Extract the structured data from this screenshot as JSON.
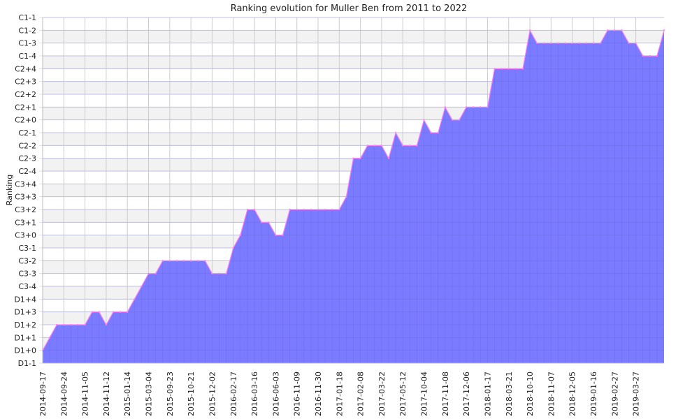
{
  "chart_data": {
    "type": "area",
    "title": "Ranking evolution for Muller Ben from 2011 to 2022",
    "xlabel": "",
    "ylabel": "Ranking",
    "y_categories": [
      "D1-1",
      "D1+0",
      "D1+1",
      "D1+2",
      "D1+3",
      "D1+4",
      "C3-4",
      "C3-3",
      "C3-2",
      "C3-1",
      "C3+0",
      "C3+1",
      "C3+2",
      "C3+3",
      "C3+4",
      "C2-4",
      "C2-3",
      "C2-2",
      "C2-1",
      "C2+0",
      "C2+1",
      "C2+2",
      "C2+3",
      "C2+4",
      "C1-4",
      "C1-3",
      "C1-2",
      "C1-1"
    ],
    "x_tick_labels": [
      "2014-09-17",
      "2014-09-24",
      "2014-11-05",
      "2014-11-12",
      "2015-01-14",
      "2015-03-04",
      "2015-09-23",
      "2015-10-21",
      "2015-12-02",
      "2016-02-17",
      "2016-03-16",
      "2016-06-03",
      "2016-11-09",
      "2016-11-30",
      "2017-01-18",
      "2017-02-08",
      "2017-03-22",
      "2017-05-12",
      "2017-10-04",
      "2017-11-08",
      "2017-12-06",
      "2018-01-17",
      "2018-03-21",
      "2018-10-10",
      "2018-11-07",
      "2018-12-05",
      "2019-01-16",
      "2019-02-27",
      "2019-03-27"
    ],
    "series": [
      {
        "values": [
          "D1+0",
          "D1+1",
          "D1+2",
          "D1+2",
          "D1+2",
          "D1+2",
          "D1+2",
          "D1+3",
          "D1+3",
          "D1+2",
          "D1+3",
          "D1+3",
          "D1+3",
          "D1+4",
          "C3-4",
          "C3-3",
          "C3-3",
          "C3-2",
          "C3-2",
          "C3-2",
          "C3-2",
          "C3-2",
          "C3-2",
          "C3-2",
          "C3-3",
          "C3-3",
          "C3-3",
          "C3-1",
          "C3+0",
          "C3+2",
          "C3+2",
          "C3+1",
          "C3+1",
          "C3+0",
          "C3+0",
          "C3+2",
          "C3+2",
          "C3+2",
          "C3+2",
          "C3+2",
          "C3+2",
          "C3+2",
          "C3+2",
          "C3+3",
          "C2-3",
          "C2-3",
          "C2-2",
          "C2-2",
          "C2-2",
          "C2-3",
          "C2-1",
          "C2-2",
          "C2-2",
          "C2-2",
          "C2+0",
          "C2-1",
          "C2-1",
          "C2+1",
          "C2+0",
          "C2+0",
          "C2+1",
          "C2+1",
          "C2+1",
          "C2+1",
          "C2+4",
          "C2+4",
          "C2+4",
          "C2+4",
          "C2+4",
          "C1-2",
          "C1-3",
          "C1-3",
          "C1-3",
          "C1-3",
          "C1-3",
          "C1-3",
          "C1-3",
          "C1-3",
          "C1-3",
          "C1-3",
          "C1-2",
          "C1-2",
          "C1-2",
          "C1-3",
          "C1-3",
          "C1-4",
          "C1-4",
          "C1-4",
          "C1-2"
        ]
      }
    ],
    "x_tick_every": 3,
    "fill_color": "#7b7bff",
    "line_color": "#ff80ff",
    "grid": true,
    "band_color": "#f2f2f2",
    "grid_color": "#cccccc"
  }
}
